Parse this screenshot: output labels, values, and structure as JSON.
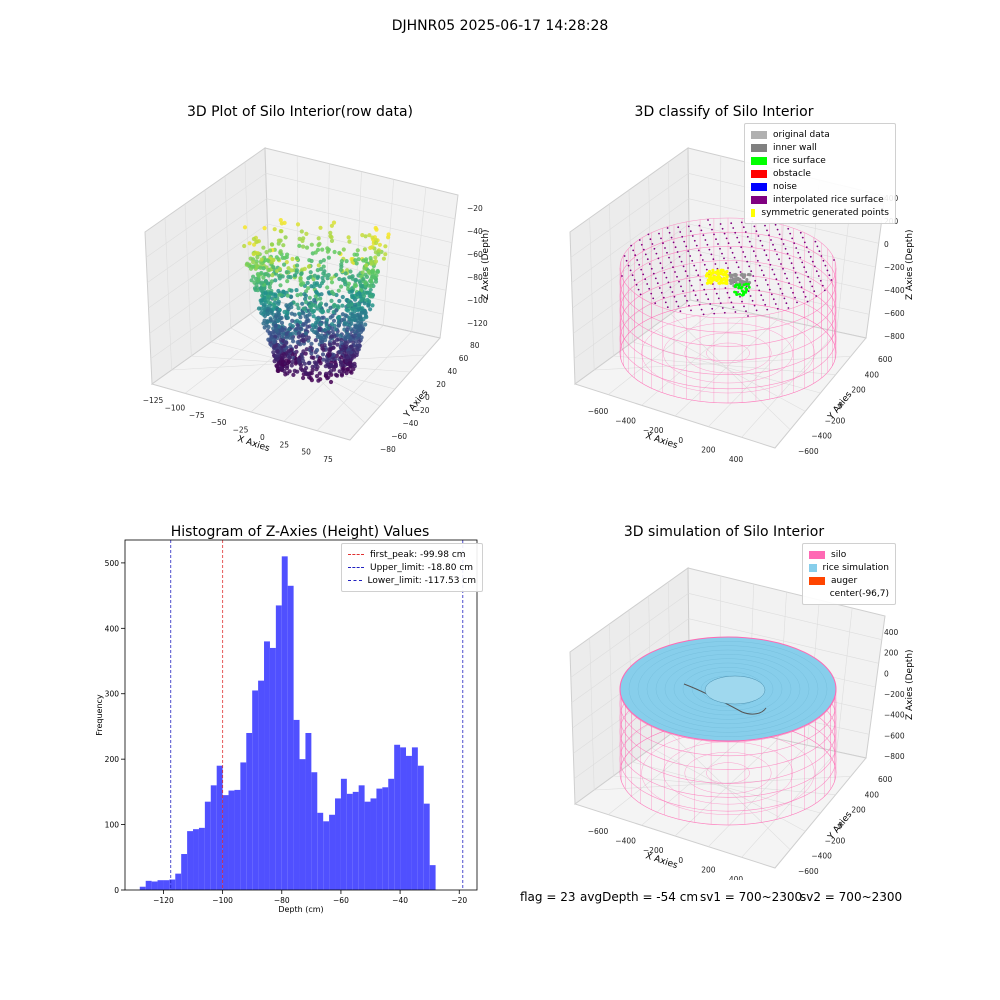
{
  "figure": {
    "suptitle": "DJHNR05 2025-06-17 14:28:28"
  },
  "chart_data": [
    {
      "type": "scatter3d",
      "title": "3D Plot of Silo Interior(row data)",
      "xlabel": "X Axies",
      "ylabel": "Y Axies",
      "zlabel": "Z Axies (Depth)",
      "x_ticks": [
        "−125",
        "−100",
        "−75",
        "−50",
        "−25",
        "0",
        "25",
        "50",
        "75"
      ],
      "y_ticks": [
        "−80",
        "−60",
        "−40",
        "−20",
        "0",
        "20",
        "40",
        "60",
        "80"
      ],
      "z_ticks": [
        "−20",
        "−40",
        "−60",
        "−80",
        "−100",
        "−120"
      ],
      "colormap": [
        "#440154",
        "#3b528b",
        "#21918c",
        "#5ec962",
        "#fde725"
      ]
    },
    {
      "type": "scatter3d",
      "title": "3D classify of Silo Interior",
      "xlabel": "X Axies",
      "ylabel": "Y Axies",
      "zlabel": "Z Axies (Depth)",
      "x_ticks": [
        "−600",
        "−400",
        "−200",
        "0",
        "200",
        "400"
      ],
      "y_ticks": [
        "−600",
        "−400",
        "−200",
        "0",
        "200",
        "400",
        "600"
      ],
      "z_ticks": [
        "400",
        "200",
        "0",
        "−200",
        "−400",
        "−600",
        "−800"
      ],
      "legend": [
        {
          "label": "original data",
          "color": "#b0b0b0"
        },
        {
          "label": "inner wall",
          "color": "#808080"
        },
        {
          "label": "rice surface",
          "color": "#00ff00"
        },
        {
          "label": "obstacle",
          "color": "#ff0000"
        },
        {
          "label": "noise",
          "color": "#0000ff"
        },
        {
          "label": "interpolated rice surface",
          "color": "#800080"
        },
        {
          "label": "symmetric generated points",
          "color": "#ffff00"
        }
      ]
    },
    {
      "type": "bar",
      "title": "Histogram of Z-Axies (Height) Values",
      "xlabel": "Depth (cm)",
      "ylabel": "Frequency",
      "bar_color": "#5050ff",
      "bin_start": -128,
      "bin_width": 2,
      "values": [
        5,
        14,
        13,
        15,
        15,
        16,
        25,
        55,
        90,
        93,
        95,
        135,
        160,
        190,
        145,
        152,
        153,
        195,
        240,
        305,
        320,
        380,
        370,
        435,
        510,
        465,
        260,
        200,
        240,
        180,
        118,
        105,
        115,
        140,
        170,
        147,
        150,
        160,
        135,
        140,
        155,
        157,
        170,
        222,
        218,
        205,
        218,
        190,
        132,
        38
      ],
      "xlim": [
        -133,
        -14
      ],
      "ylim": [
        0,
        535
      ],
      "x_ticks": [
        -120,
        -100,
        -80,
        -60,
        -40,
        -20
      ],
      "y_ticks": [
        0,
        100,
        200,
        300,
        400,
        500
      ],
      "vlines": [
        {
          "label": "first_peak: -99.98 cm",
          "x": -99.98,
          "color": "#e03030"
        },
        {
          "label": "Upper_limit: -18.80 cm",
          "x": -18.8,
          "color": "#2020c0"
        },
        {
          "label": "Lower_limit: -117.53 cm",
          "x": -117.53,
          "color": "#2020c0"
        }
      ]
    },
    {
      "type": "surface3d",
      "title": "3D simulation of Silo Interior",
      "xlabel": "X Axies",
      "ylabel": "Y Axies",
      "zlabel": "Z Axies (Depth)",
      "x_ticks": [
        "−600",
        "−400",
        "−200",
        "0",
        "200",
        "400"
      ],
      "y_ticks": [
        "−600",
        "−400",
        "−200",
        "0",
        "200",
        "400",
        "600"
      ],
      "z_ticks": [
        "400",
        "200",
        "0",
        "−200",
        "−400",
        "−600",
        "−800"
      ],
      "legend": [
        {
          "label": "silo",
          "color": "#ff69b4"
        },
        {
          "label": "rice simulation",
          "color": "#87ceeb"
        },
        {
          "label": "auger",
          "color": "#ff4500"
        },
        {
          "label": "center(-96,7)",
          "color": ""
        }
      ]
    }
  ],
  "footer": {
    "flag": "flag = 23",
    "avg_depth": "avgDepth = -54 cm",
    "sv1": "sv1 = 700~2300",
    "sv2": "sv2 = 700~2300"
  }
}
